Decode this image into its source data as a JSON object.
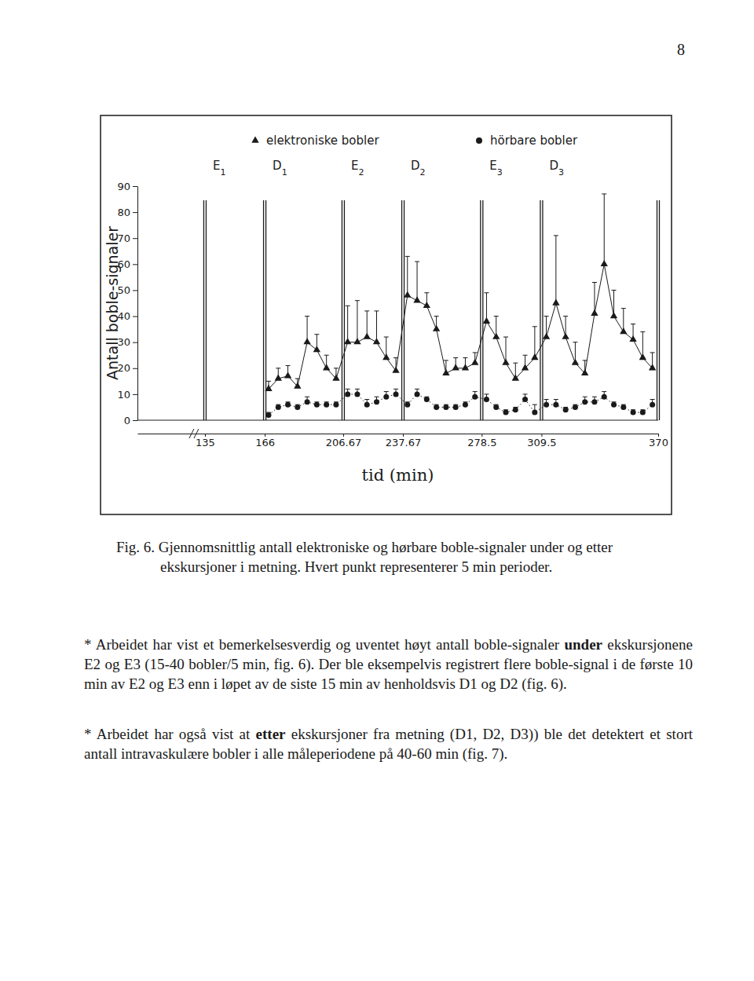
{
  "page_number": "8",
  "chart_data": {
    "type": "line",
    "x_label": "tid (min)",
    "y_label": "Antall boble-signaler",
    "xlim": [
      100,
      370
    ],
    "xticks": [
      135,
      166,
      206.67,
      237.67,
      278.5,
      309.5,
      370
    ],
    "ylim": [
      0,
      90
    ],
    "yticks": [
      0,
      10,
      20,
      30,
      40,
      50,
      60,
      70,
      80,
      90
    ],
    "grid": false,
    "legend": "top",
    "phases": [
      {
        "label": "E1",
        "start": 135,
        "end": 166
      },
      {
        "label": "D1",
        "start": 166,
        "end": 206.67
      },
      {
        "label": "E2",
        "start": 206.67,
        "end": 237.67
      },
      {
        "label": "D2",
        "start": 237.67,
        "end": 278.5
      },
      {
        "label": "E3",
        "start": 278.5,
        "end": 309.5
      },
      {
        "label": "D3",
        "start": 309.5,
        "end": 370
      }
    ],
    "x": [
      168,
      173,
      178,
      183,
      188,
      193,
      198,
      203,
      209,
      214,
      219,
      224,
      229,
      234,
      240,
      245,
      250,
      255,
      260,
      265,
      270,
      275,
      281,
      286,
      291,
      296,
      301,
      306,
      312,
      317,
      322,
      327,
      332,
      337,
      342,
      347,
      352,
      357,
      362,
      367
    ],
    "series": [
      {
        "name": "elektroniske bobler",
        "color": "#1a1a1a",
        "marker": "triangle",
        "line_style": "solid",
        "values": [
          12,
          16,
          17,
          13,
          30,
          27,
          20,
          16,
          30,
          30,
          32,
          30,
          24,
          19,
          48,
          46,
          44,
          35,
          18,
          20,
          20,
          22,
          38,
          32,
          22,
          16,
          20,
          24,
          32,
          45,
          32,
          22,
          18,
          41,
          60,
          40,
          34,
          31,
          24,
          20
        ],
        "errors": [
          3,
          4,
          4,
          3,
          10,
          6,
          5,
          4,
          14,
          16,
          10,
          12,
          8,
          5,
          15,
          15,
          5,
          5,
          5,
          4,
          4,
          4,
          11,
          8,
          10,
          6,
          5,
          12,
          8,
          26,
          8,
          8,
          5,
          12,
          27,
          10,
          9,
          6,
          10,
          6
        ]
      },
      {
        "name": "hörbare bobler",
        "color": "#1a1a1a",
        "marker": "circle",
        "line_style": "dotted",
        "values": [
          2,
          5,
          6,
          5,
          7,
          6,
          6,
          6,
          10,
          10,
          6,
          7,
          9,
          10,
          6,
          10,
          8,
          5,
          5,
          5,
          6,
          9,
          8,
          5,
          3,
          4,
          8,
          3,
          6,
          6,
          4,
          5,
          7,
          7,
          9,
          6,
          5,
          3,
          3,
          6
        ],
        "errors": [
          1,
          1,
          1,
          1,
          2,
          1,
          1,
          1,
          2,
          2,
          2,
          2,
          2,
          2,
          1,
          2,
          1,
          1,
          1,
          1,
          1,
          2,
          2,
          1,
          1,
          1,
          2,
          3,
          2,
          2,
          1,
          1,
          2,
          2,
          2,
          1,
          1,
          1,
          1,
          2
        ]
      }
    ]
  },
  "caption": "Fig. 6. Gjennomsnittlig antall elektroniske og hørbare boble-signaler under og etter ekskursjoner i metning. Hvert punkt representerer 5 min perioder.",
  "paragraphs": [
    [
      {
        "text": "* Arbeidet har vist et bemerkelsesverdig og uventet høyt antall boble-signaler "
      },
      {
        "text": "under",
        "bold": true
      },
      {
        "text": " ekskursjonene E2 og E3 (15-40 bobler/5 min, fig. 6). Der ble eksempelvis registrert flere boble-signal i de første 10 min av E2 og E3 enn i løpet av de siste 15 min av henholdsvis D1 og D2 (fig. 6)."
      }
    ],
    [
      {
        "text": "* Arbeidet har også vist at "
      },
      {
        "text": "etter",
        "bold": true
      },
      {
        "text": " ekskursjoner fra metning (D1, D2, D3)) ble det detektert et stort antall intravaskulære bobler i alle måleperiodene på 40-60 min (fig. 7)."
      }
    ]
  ]
}
